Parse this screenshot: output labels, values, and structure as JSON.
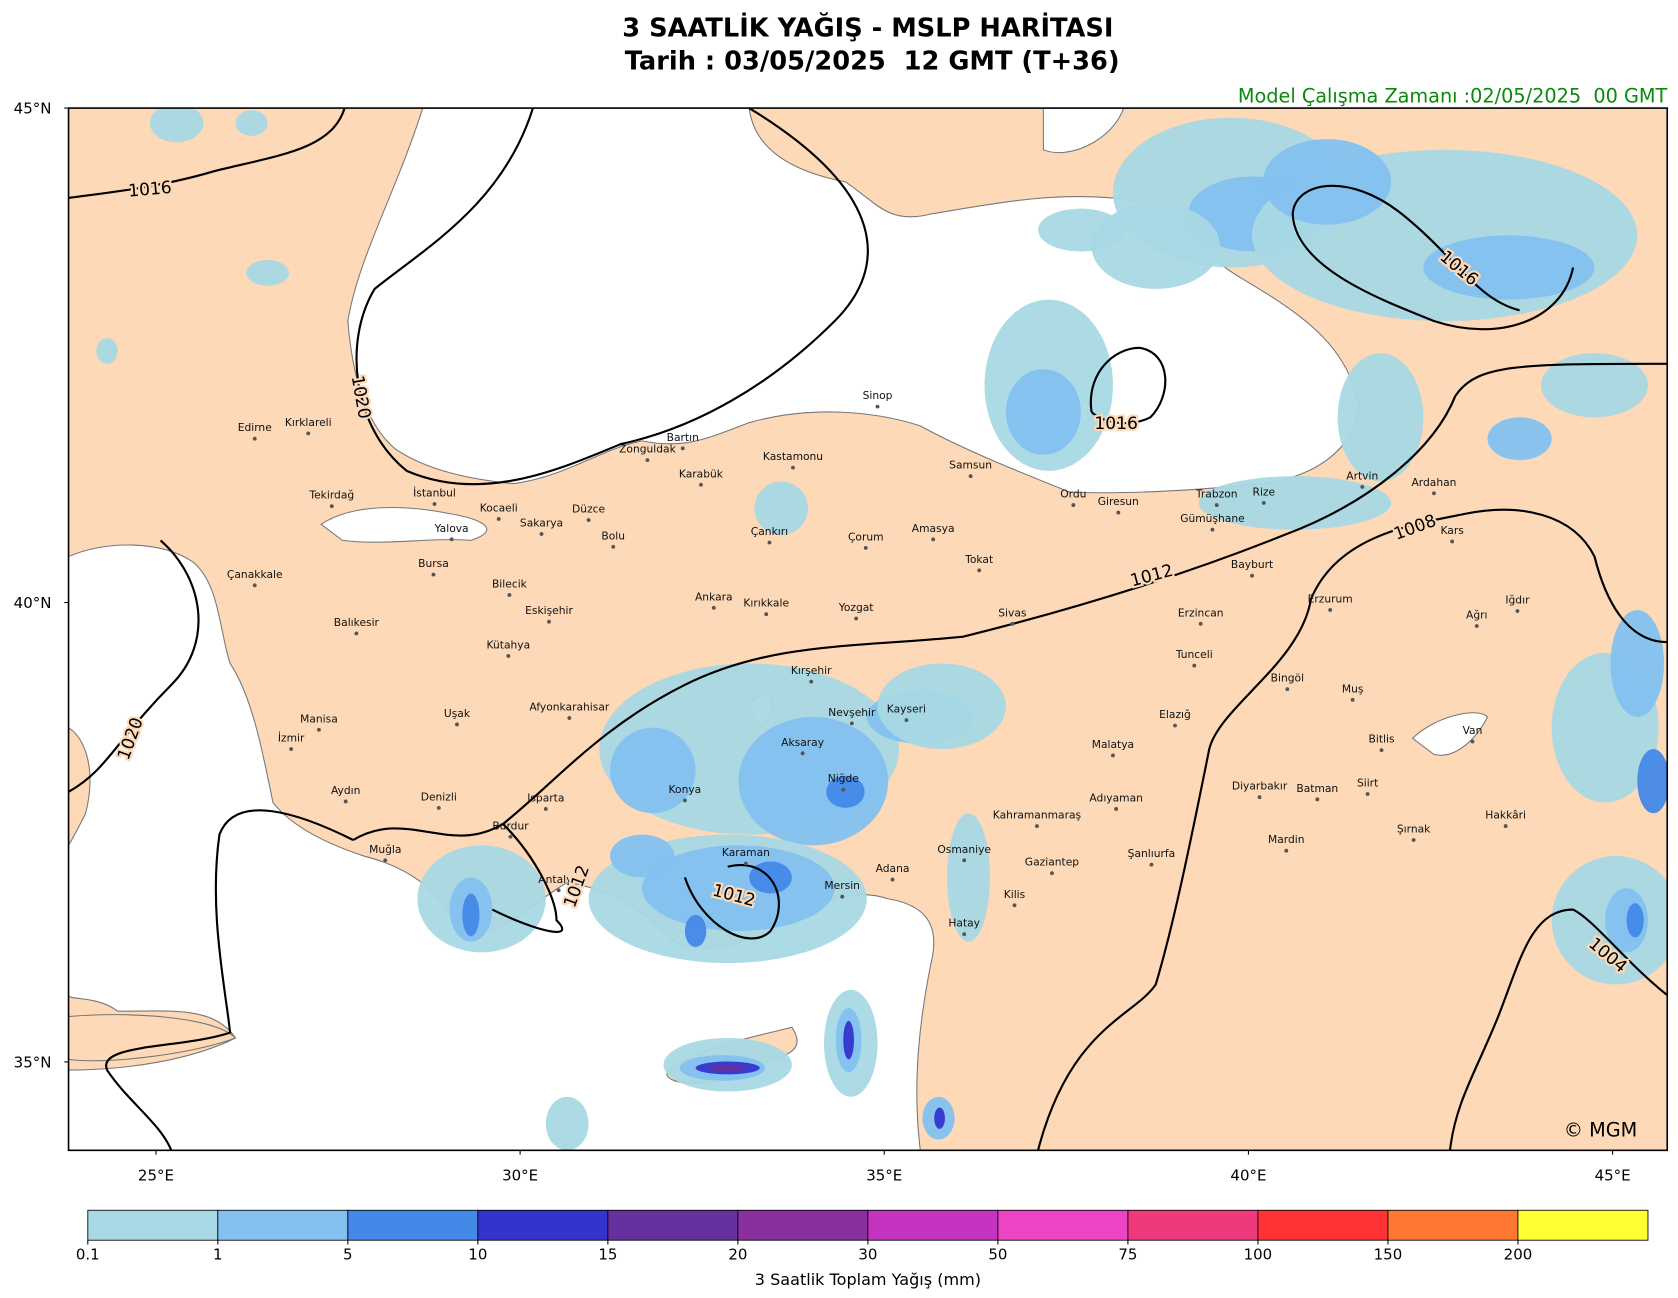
{
  "header": {
    "title": "3 SAATLİK YAĞIŞ - MSLP HARİTASI",
    "subtitle": "Tarih : 03/05/2025  12 GMT (T+36)",
    "run_time": "Model Çalışma Zamanı :02/05/2025  00 GMT"
  },
  "map": {
    "xlim": [
      23.8,
      45.75
    ],
    "ylim": [
      34.0,
      45.0
    ],
    "xticks": [
      {
        "value": 25,
        "label": "25°E"
      },
      {
        "value": 30,
        "label": "30°E"
      },
      {
        "value": 35,
        "label": "35°E"
      },
      {
        "value": 40,
        "label": "40°E"
      },
      {
        "value": 45,
        "label": "45°E"
      }
    ],
    "yticks": [
      {
        "value": 45,
        "label": "45°N"
      },
      {
        "value": 40,
        "label": "40°N"
      },
      {
        "value": 35,
        "label": "35°N"
      }
    ],
    "cities": [
      "Edirne",
      "Kırklareli",
      "Tekirdağ",
      "İstanbul",
      "Kocaeli",
      "Sakarya",
      "Düzce",
      "Bolu",
      "Yalova",
      "Bursa",
      "Çanakkale",
      "Bilecik",
      "Eskişehir",
      "Balıkesir",
      "Kütahya",
      "Zonguldak",
      "Bartın",
      "Karabük",
      "Kastamonu",
      "Sinop",
      "Samsun",
      "Ordu",
      "Giresun",
      "Trabzon",
      "Rize",
      "Artvin",
      "Ardahan",
      "Kars",
      "Çankırı",
      "Çorum",
      "Amasya",
      "Tokat",
      "Ankara",
      "Kırıkkale",
      "Yozgat",
      "Sivas",
      "Gümüşhane",
      "Bayburt",
      "Erzincan",
      "Erzurum",
      "Ağrı",
      "Iğdır",
      "Tunceli",
      "Bingöl",
      "Muş",
      "Elazığ",
      "Bitlis",
      "Van",
      "Malatya",
      "Kırşehir",
      "Nevşehir",
      "Kayseri",
      "Aksaray",
      "Niğde",
      "Konya",
      "Afyonkarahisar",
      "Uşak",
      "Manisa",
      "İzmir",
      "Aydın",
      "Denizli",
      "Isparta",
      "Burdur",
      "Muğla",
      "Antalya",
      "Karaman",
      "Mersin",
      "Adana",
      "Osmaniye",
      "Hatay",
      "Kilis",
      "Gaziantep",
      "Kahramanmaraş",
      "Adıyaman",
      "Şanlıurfa",
      "Diyarbakır",
      "Batman",
      "Siirt",
      "Mardin",
      "Şırnak",
      "Hakkâri"
    ],
    "isobar_labels": [
      1016,
      1020,
      1016,
      1016,
      1012,
      1008,
      1020,
      1012,
      1012,
      1004
    ],
    "copyright": "© MGM"
  },
  "colorbar": {
    "bounds": [
      0.1,
      1,
      5,
      10,
      15,
      20,
      30,
      50,
      75,
      100,
      150,
      200
    ],
    "colors": [
      "#a8d8e4",
      "#84c1f0",
      "#4489e8",
      "#3434cc",
      "#6630a0",
      "#8a2fa0",
      "#c434c0",
      "#ec44c4",
      "#ee3a7c",
      "#ff3333",
      "#ff7733",
      "#ffff33"
    ],
    "label": "3 Saatlik Toplam Yağış (mm)"
  }
}
